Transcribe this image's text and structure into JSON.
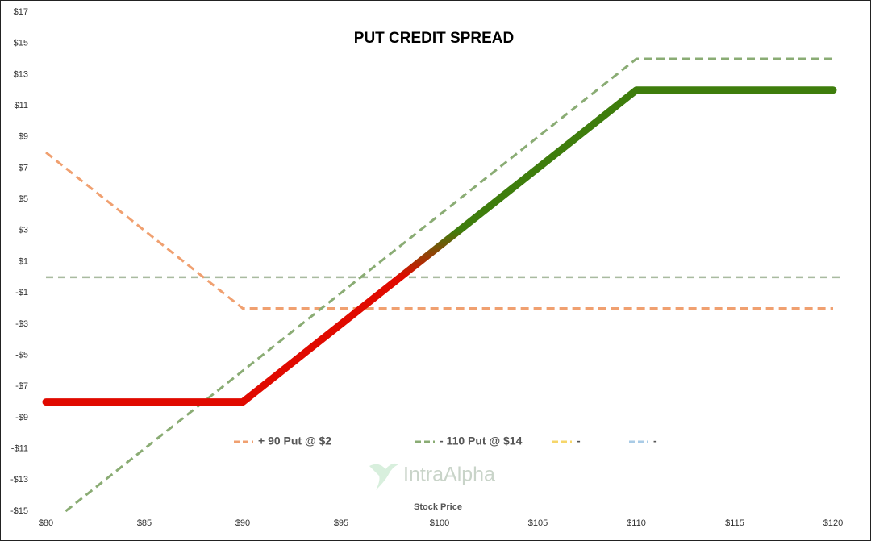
{
  "chart_data": {
    "type": "line",
    "title": "PUT CREDIT SPREAD",
    "x_label": "Stock Price",
    "watermark": "IntraAlpha",
    "xlim": [
      80,
      120
    ],
    "xticks": [
      {
        "value": 80,
        "label": "$80"
      },
      {
        "value": 85,
        "label": "$85"
      },
      {
        "value": 90,
        "label": "$90"
      },
      {
        "value": 95,
        "label": "$95"
      },
      {
        "value": 100,
        "label": "$100"
      },
      {
        "value": 105,
        "label": "$105"
      },
      {
        "value": 110,
        "label": "$110"
      },
      {
        "value": 115,
        "label": "$115"
      },
      {
        "value": 120,
        "label": "$120"
      }
    ],
    "ylim": [
      -15,
      17
    ],
    "yticks": [
      {
        "value": 17,
        "label": "$17"
      },
      {
        "value": 15,
        "label": "$15"
      },
      {
        "value": 13,
        "label": "$13"
      },
      {
        "value": 11,
        "label": "$11"
      },
      {
        "value": 9,
        "label": "$9"
      },
      {
        "value": 7,
        "label": "$7"
      },
      {
        "value": 5,
        "label": "$5"
      },
      {
        "value": 3,
        "label": "$3"
      },
      {
        "value": 1,
        "label": "$1"
      },
      {
        "value": -1,
        "label": "-$1"
      },
      {
        "value": -3,
        "label": "-$3"
      },
      {
        "value": -5,
        "label": "-$5"
      },
      {
        "value": -7,
        "label": "-$7"
      },
      {
        "value": -9,
        "label": "-$9"
      },
      {
        "value": -11,
        "label": "-$11"
      },
      {
        "value": -13,
        "label": "-$13"
      },
      {
        "value": -15,
        "label": "-$15"
      }
    ],
    "legend": "bottom",
    "series": [
      {
        "name": "+ 90 Put @ $2",
        "color": "#f0a070",
        "dashed": true,
        "x": [
          80,
          90,
          120
        ],
        "values": [
          8,
          -2,
          -2
        ]
      },
      {
        "name": "- 110 Put @ $14",
        "color": "#8aac74",
        "dashed": true,
        "x": [
          81,
          110,
          120
        ],
        "values": [
          -15,
          14,
          14
        ]
      },
      {
        "name": "-",
        "color": "#f6d66a",
        "dashed": true,
        "x": [],
        "values": []
      },
      {
        "name": "-",
        "color": "#a9cbe6",
        "dashed": true,
        "x": [],
        "values": []
      },
      {
        "colors": [
          "#e00a00",
          "#3e7d0c"
        ],
        "x": [
          80,
          90,
          110,
          120
        ],
        "values": [
          -8,
          -8,
          12,
          12
        ]
      }
    ]
  }
}
